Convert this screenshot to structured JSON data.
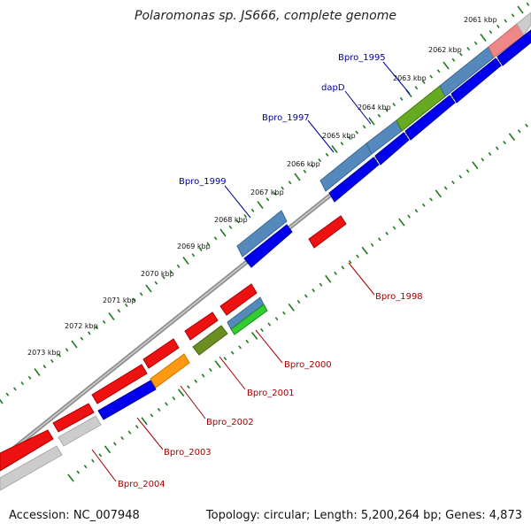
{
  "header": {
    "title": "Polaromonas sp. JS666, complete genome"
  },
  "footer": {
    "accession": "Accession: NC_007948",
    "summary": "Topology: circular; Length: 5,200,264 bp; Genes: 4,873"
  },
  "colors": {
    "ring": "#8e8e8e",
    "ticks": "#1f7a1f",
    "forward_label": "#000099",
    "reverse_label": "#aa0000"
  },
  "kbp_labels": [
    "2061 kbp",
    "2062 kbp",
    "2063 kbp",
    "2064 kbp",
    "2065 kbp",
    "2066 kbp",
    "2067 kbp",
    "2068 kbp",
    "2069 kbp",
    "2070 kbp",
    "2071 kbp",
    "2072 kbp",
    "2073 kbp"
  ],
  "gene_labels": {
    "forward": [
      "Bpro_1995",
      "dapD",
      "Bpro_1997",
      "Bpro_1999"
    ],
    "reverse": [
      "Bpro_1998",
      "Bpro_2000",
      "Bpro_2001",
      "Bpro_2002",
      "Bpro_2003",
      "Bpro_2004"
    ]
  }
}
